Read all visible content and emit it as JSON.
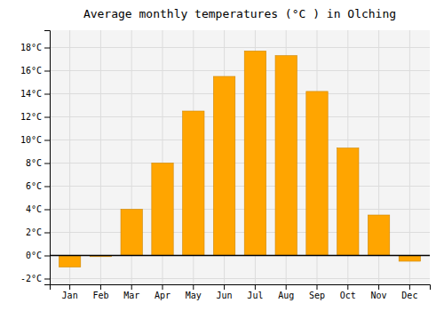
{
  "chart_data": {
    "type": "bar",
    "title": "Average monthly temperatures (°C ) in Olching",
    "categories": [
      "Jan",
      "Feb",
      "Mar",
      "Apr",
      "May",
      "Jun",
      "Jul",
      "Aug",
      "Sep",
      "Oct",
      "Nov",
      "Dec"
    ],
    "values": [
      -1.0,
      -0.1,
      4.0,
      8.0,
      12.5,
      15.5,
      17.7,
      17.3,
      14.2,
      9.3,
      3.5,
      -0.5
    ],
    "color": "#FFA500",
    "ylim": [
      -2.5,
      19.5
    ],
    "yticks": [
      {
        "value": -2,
        "label": "-2°C"
      },
      {
        "value": 0,
        "label": "0°C"
      },
      {
        "value": 2,
        "label": "2°C"
      },
      {
        "value": 4,
        "label": "4°C"
      },
      {
        "value": 6,
        "label": "6°C"
      },
      {
        "value": 8,
        "label": "8°C"
      },
      {
        "value": 10,
        "label": "10°C"
      },
      {
        "value": 12,
        "label": "12°C"
      },
      {
        "value": 14,
        "label": "14°C"
      },
      {
        "value": 16,
        "label": "16°C"
      },
      {
        "value": 18,
        "label": "18°C"
      }
    ],
    "grid": true
  }
}
